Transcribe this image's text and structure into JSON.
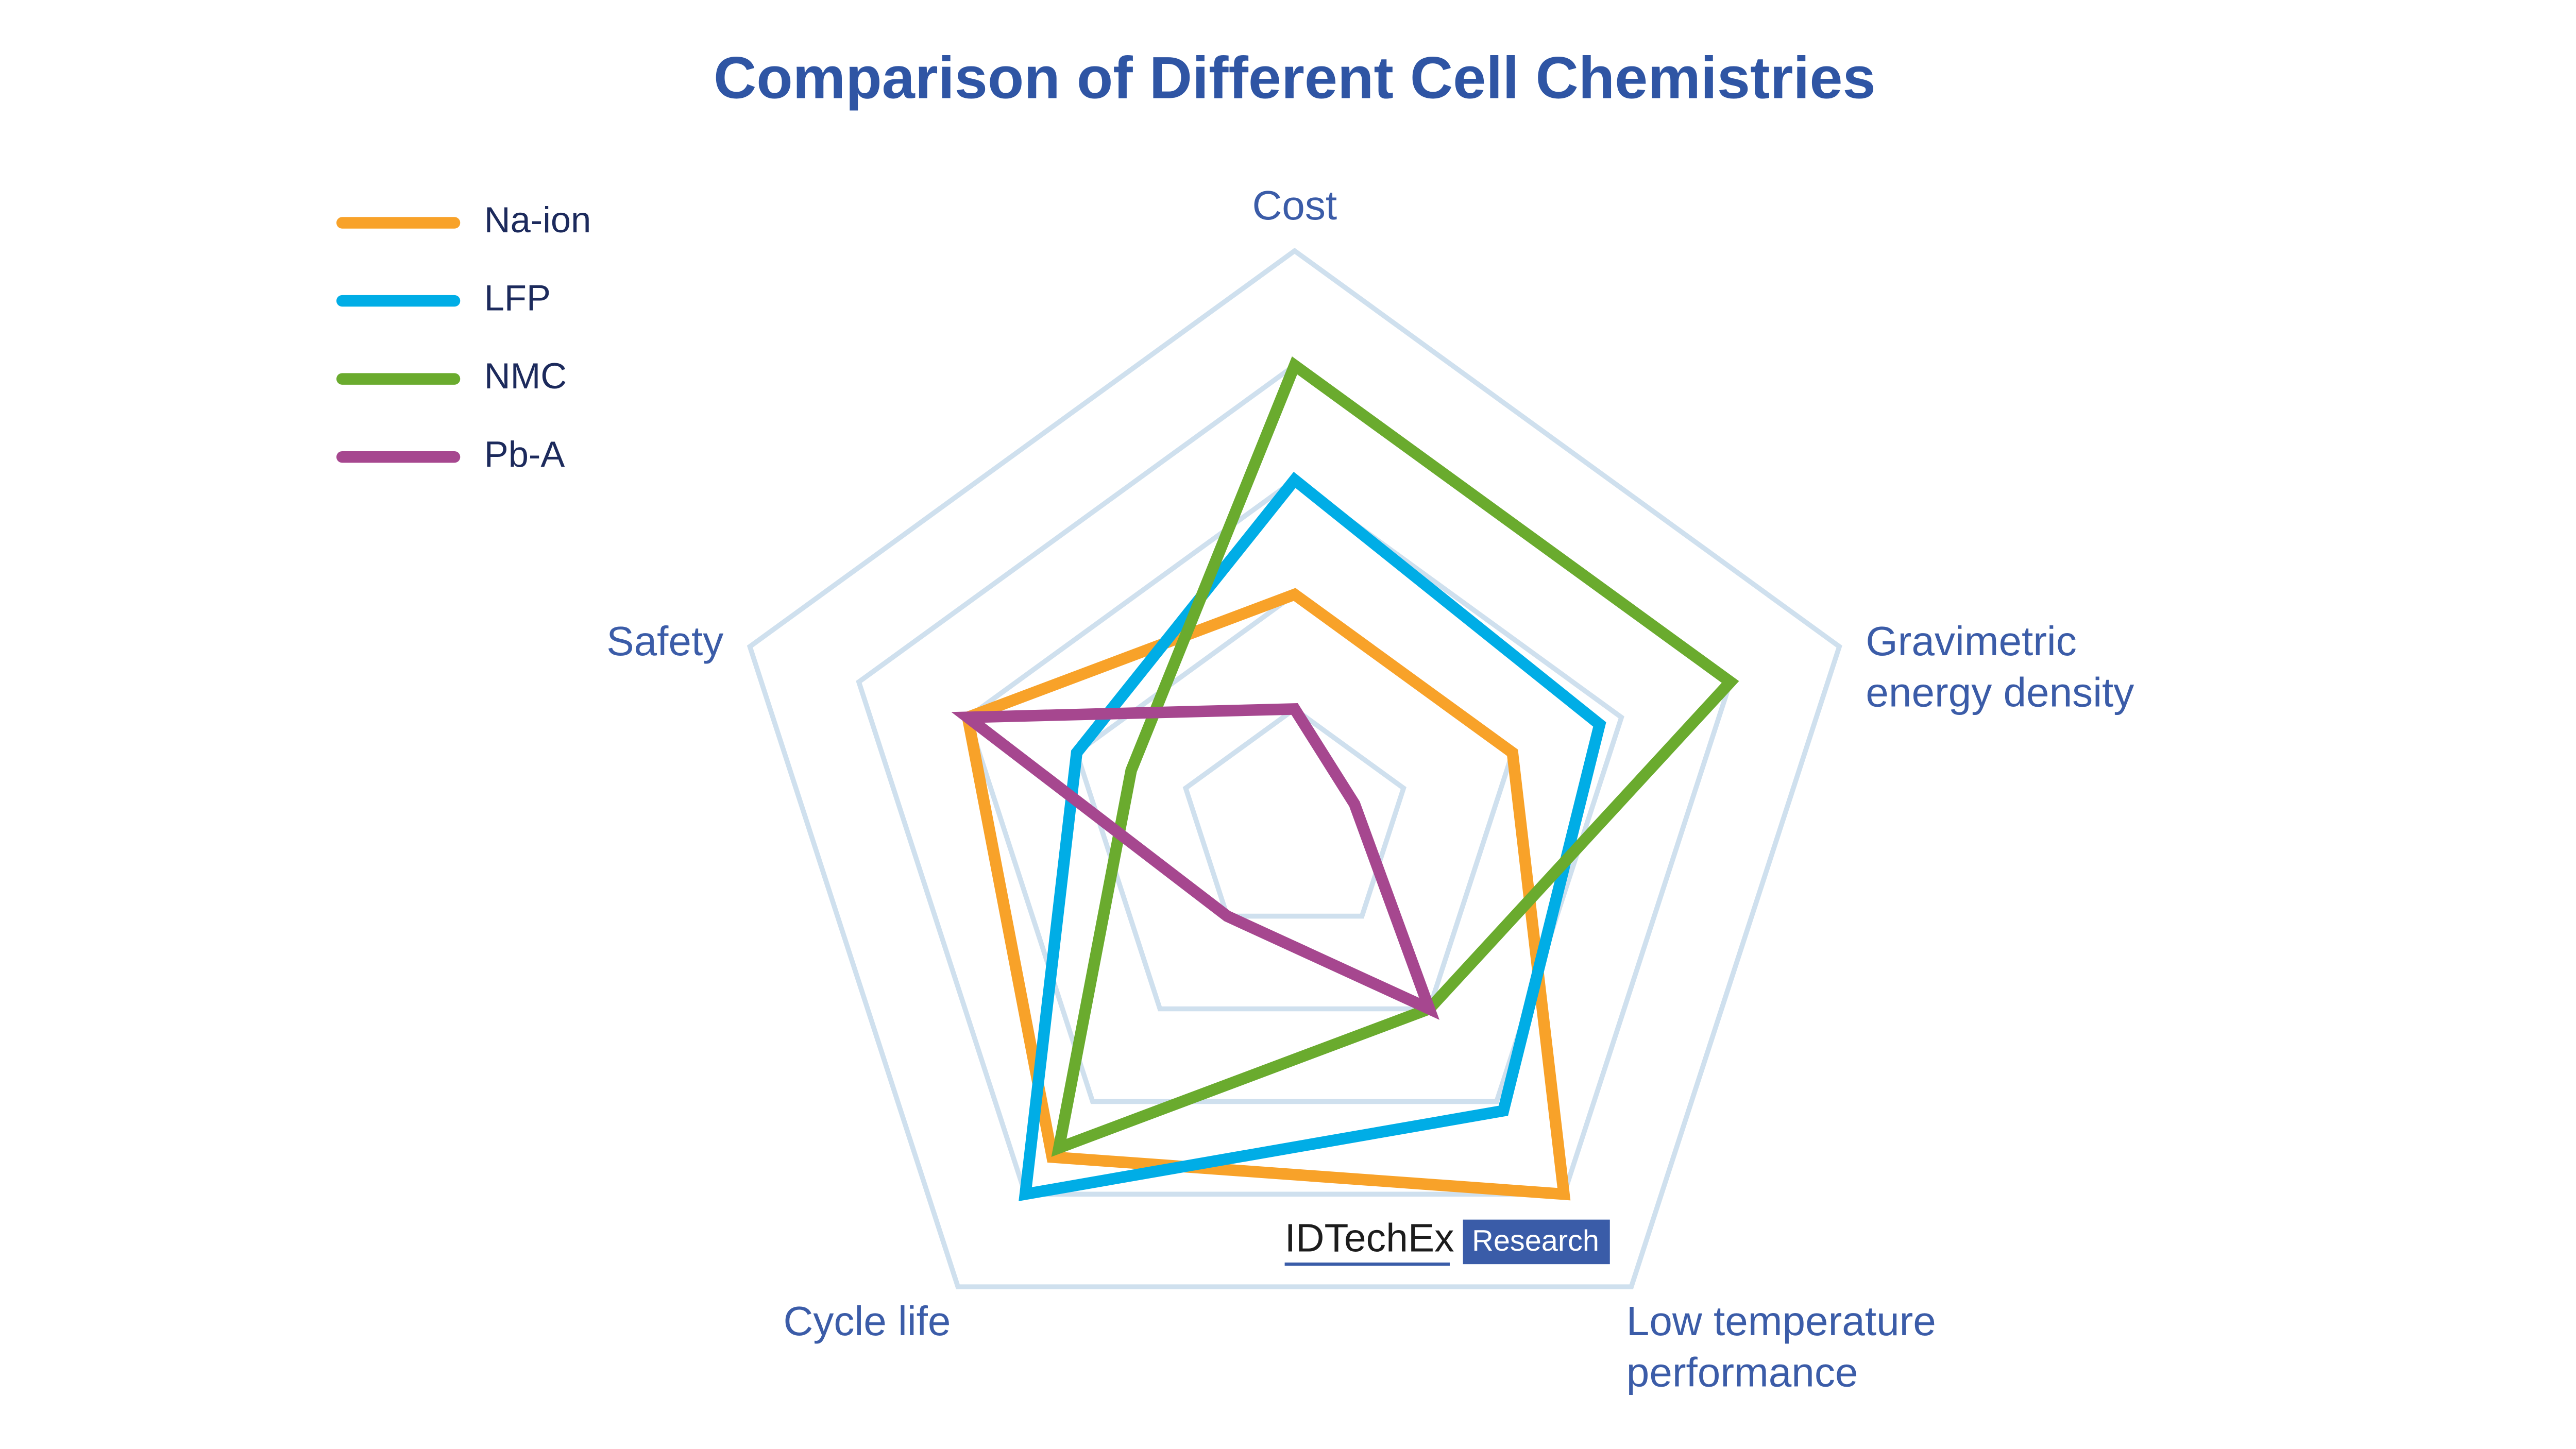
{
  "chart_data": {
    "type": "radar",
    "title": "Comparison of Different Cell Chemistries",
    "categories": [
      "Cost",
      "Gravimetric energy density",
      "Low temperature performance",
      "Cycle life",
      "Safety"
    ],
    "series": [
      {
        "name": "Na-ion",
        "color": "#f8a229",
        "values": [
          2,
          2,
          4,
          3.6,
          3
        ]
      },
      {
        "name": "LFP",
        "color": "#00ade6",
        "values": [
          3,
          2.8,
          3.1,
          4,
          2
        ]
      },
      {
        "name": "NMC",
        "color": "#6aab2e",
        "values": [
          4,
          4,
          2,
          3.5,
          1.5
        ]
      },
      {
        "name": "Pb-A",
        "color": "#a6478f",
        "values": [
          1,
          0.55,
          2,
          1,
          3
        ]
      }
    ],
    "rlim": [
      0,
      5
    ],
    "rticks": [
      1,
      2,
      3,
      4,
      5
    ],
    "grid": true,
    "legend": "top-left",
    "watermark": {
      "brand": "IDTechEx",
      "tag": "Research"
    }
  }
}
